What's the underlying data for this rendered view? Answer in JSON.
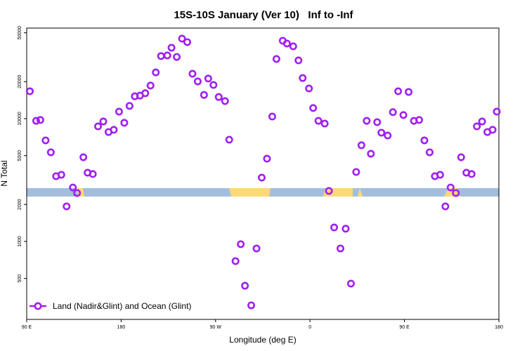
{
  "chart_data": {
    "type": "scatter",
    "title": "15S-10S January (Ver 10)   Inf to -Inf",
    "x_label": "Longitude (deg E)",
    "y_label": "N Total",
    "log_y": true,
    "legend_position": "bottom-left",
    "xlim": [
      90,
      540
    ],
    "xticks": [
      {
        "value": 90,
        "label": "90 E"
      },
      {
        "value": 180,
        "label": "180"
      },
      {
        "value": 270,
        "label": "90 W"
      },
      {
        "value": 360,
        "label": "0"
      },
      {
        "value": 450,
        "label": "90 E"
      },
      {
        "value": 540,
        "label": "180"
      }
    ],
    "ylim": [
      232,
      54600
    ],
    "yticks": [
      500,
      1000,
      2000,
      5000,
      10000,
      20000,
      50000
    ],
    "series": [
      {
        "name": "Land (Nadir&Glint) and Ocean (Glint)",
        "color": "#a020f0",
        "x": [
          93,
          99,
          103,
          108,
          113,
          118,
          123,
          128,
          134,
          138,
          144,
          148,
          153,
          158,
          163,
          168,
          173,
          178,
          183,
          188,
          193,
          198,
          203,
          208,
          213,
          218,
          224,
          228,
          233,
          238,
          243,
          248,
          253,
          259,
          263,
          268,
          273,
          279,
          283,
          289,
          294,
          298,
          304,
          309,
          314,
          319,
          324,
          328,
          334,
          338,
          344,
          349,
          353,
          359,
          363,
          368,
          374,
          378,
          383,
          389,
          394,
          399,
          404,
          409,
          414,
          418,
          424,
          428,
          434,
          439,
          444,
          449,
          454,
          459,
          464,
          469,
          474,
          479,
          484,
          489,
          494,
          499,
          504,
          509,
          514,
          519,
          524,
          529,
          534,
          538
        ],
        "values": [
          16700,
          9600,
          9750,
          6650,
          5320,
          3400,
          3490,
          1930,
          2750,
          2480,
          4850,
          3630,
          3540,
          8650,
          9480,
          7780,
          8110,
          11400,
          9250,
          12700,
          15200,
          15400,
          16100,
          18600,
          23800,
          32300,
          32700,
          37800,
          31800,
          44800,
          42000,
          23200,
          20100,
          15600,
          21200,
          18800,
          15000,
          13900,
          6740,
          692,
          950,
          436,
          302,
          877,
          3310,
          4720,
          10400,
          30600,
          43100,
          40900,
          38800,
          29800,
          21400,
          17600,
          12200,
          9600,
          9120,
          2580,
          1300,
          877,
          1270,
          454,
          3680,
          6070,
          9600,
          5180,
          9360,
          7690,
          7290,
          11300,
          16700,
          10700,
          16500,
          9600,
          9750,
          6650,
          5320,
          3400,
          3490,
          1930,
          2750,
          2480,
          4850,
          3630,
          3540,
          8650,
          9480,
          7780,
          8110,
          11400
        ]
      }
    ]
  }
}
